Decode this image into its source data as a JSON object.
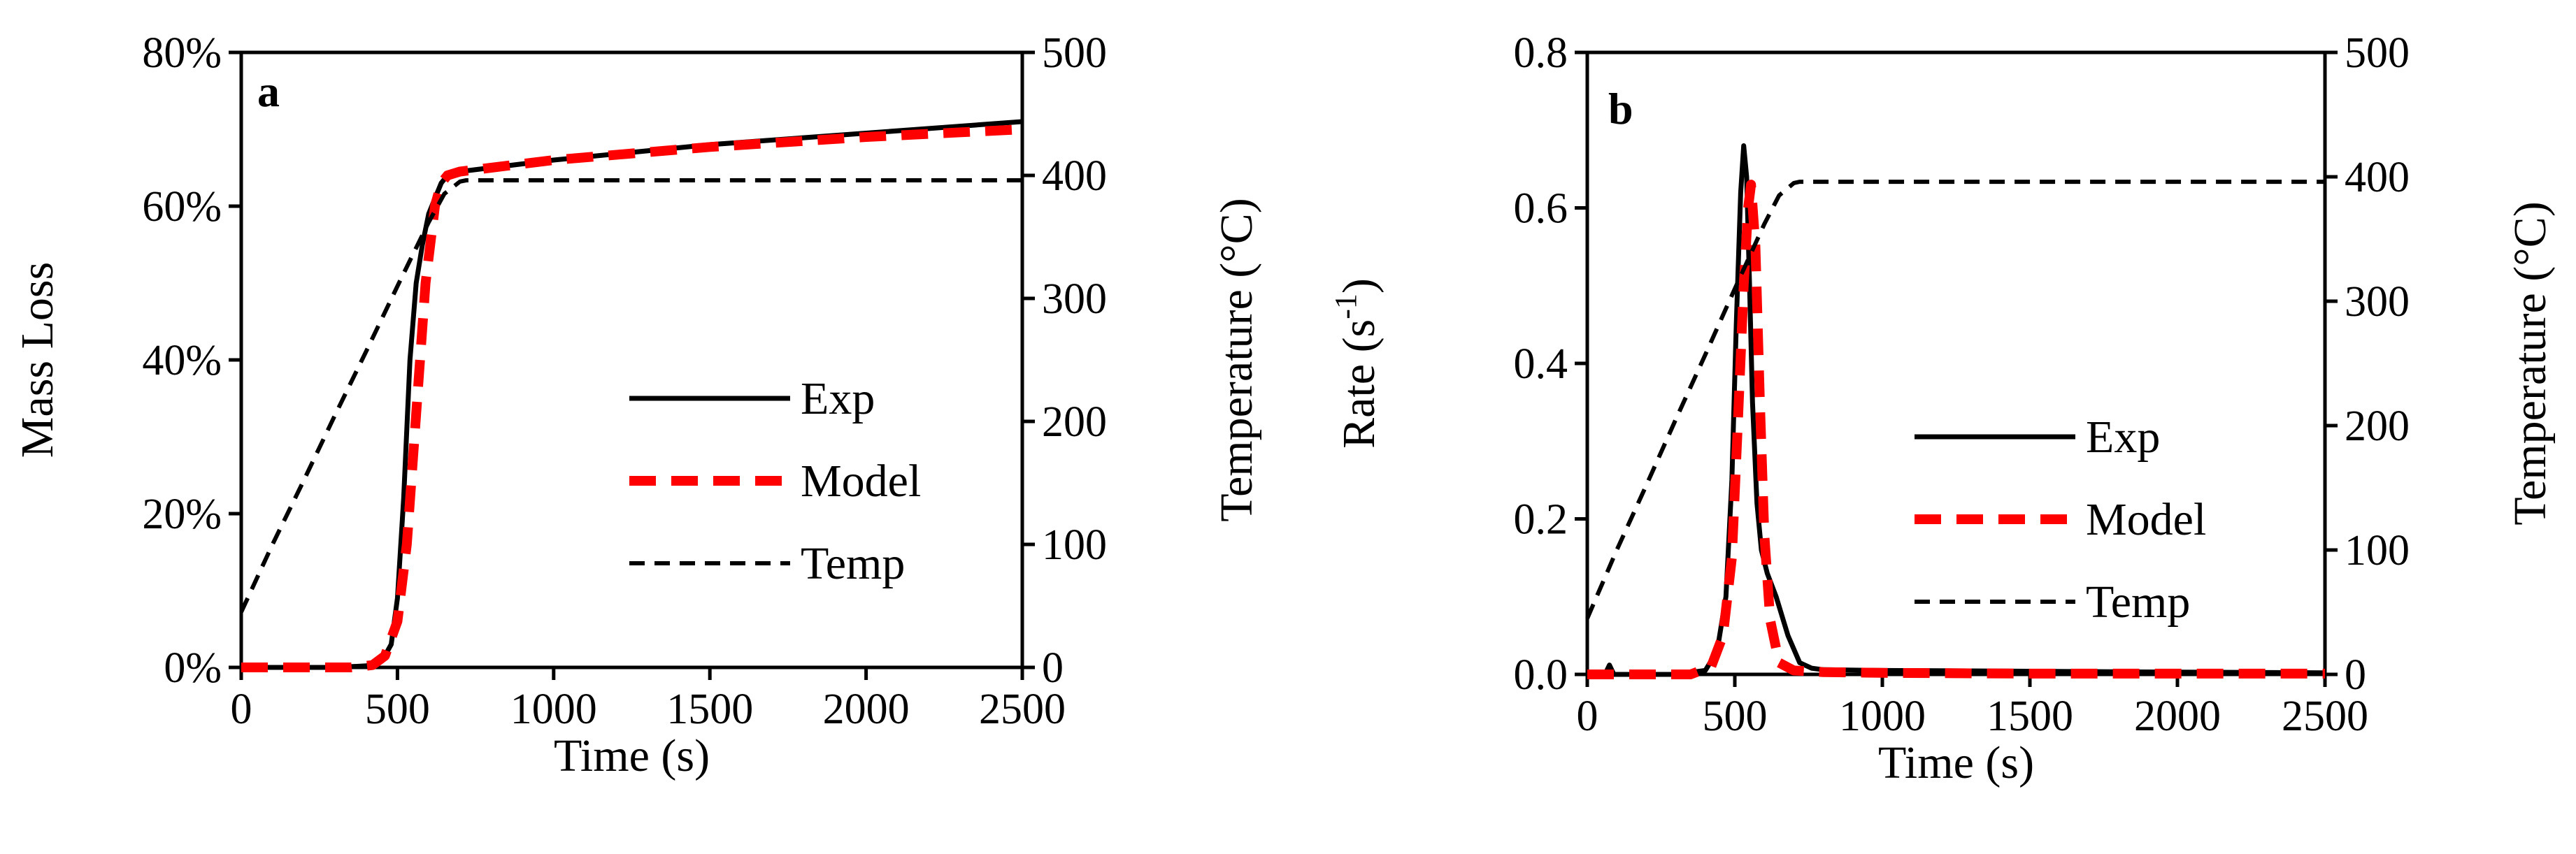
{
  "chart_data": [
    {
      "type": "line",
      "panel_label": "a",
      "xlabel": "Time (s)",
      "ylabel": "Mass Loss",
      "y2label": "Temperature (°C)",
      "xlim": [
        0,
        2500
      ],
      "ylim": [
        0,
        0.8
      ],
      "y2lim": [
        0,
        500
      ],
      "xticks": [
        "0",
        "500",
        "1000",
        "1500",
        "2000",
        "2500"
      ],
      "yticks": [
        "0%",
        "20%",
        "40%",
        "60%",
        "80%"
      ],
      "y2ticks": [
        "0",
        "100",
        "200",
        "300",
        "400",
        "500"
      ],
      "legend_position": "center-right",
      "legend": [
        "Exp",
        "Model",
        "Temp"
      ],
      "series": [
        {
          "name": "Exp",
          "axis": "left",
          "color": "#000000",
          "style": "solid",
          "x": [
            0,
            300,
            400,
            450,
            480,
            500,
            520,
            540,
            560,
            580,
            600,
            620,
            640,
            660,
            700,
            800,
            1000,
            1500,
            2000,
            2500
          ],
          "y": [
            0,
            0,
            0.002,
            0.008,
            0.03,
            0.09,
            0.22,
            0.4,
            0.5,
            0.55,
            0.59,
            0.61,
            0.63,
            0.64,
            0.645,
            0.65,
            0.66,
            0.68,
            0.695,
            0.71
          ]
        },
        {
          "name": "Model",
          "axis": "left",
          "color": "#ff0000",
          "style": "dashed",
          "x": [
            0,
            350,
            420,
            460,
            500,
            530,
            560,
            590,
            620,
            640,
            660,
            700,
            800,
            1000,
            1500,
            2000,
            2500
          ],
          "y": [
            0,
            0,
            0.003,
            0.015,
            0.06,
            0.16,
            0.33,
            0.5,
            0.6,
            0.63,
            0.64,
            0.645,
            0.65,
            0.66,
            0.677,
            0.69,
            0.7
          ]
        },
        {
          "name": "Temp",
          "axis": "right",
          "color": "#000000",
          "style": "dashed",
          "x": [
            0,
            100,
            200,
            300,
            400,
            500,
            600,
            650,
            700,
            720,
            800,
            1500,
            2500
          ],
          "y": [
            45,
            100,
            152,
            205,
            257,
            310,
            362,
            385,
            395,
            396,
            396,
            396,
            396
          ]
        }
      ]
    },
    {
      "type": "line",
      "panel_label": "b",
      "xlabel": "Time (s)",
      "ylabel": "Rate (s",
      "ylabel_superscript": "-1",
      "ylabel_suffix": ")",
      "y2label": "Temperature (°C)",
      "xlim": [
        0,
        2500
      ],
      "ylim": [
        0,
        0.8
      ],
      "y2lim": [
        0,
        500
      ],
      "xticks": [
        "0",
        "500",
        "1000",
        "1500",
        "2000",
        "2500"
      ],
      "yticks": [
        "0.0",
        "0.2",
        "0.4",
        "0.6",
        "0.8"
      ],
      "y2ticks": [
        "0",
        "100",
        "200",
        "300",
        "400",
        "500"
      ],
      "legend_position": "center-right",
      "legend": [
        "Exp",
        "Model",
        "Temp"
      ],
      "series": [
        {
          "name": "Exp",
          "axis": "left",
          "color": "#000000",
          "style": "solid",
          "x": [
            0,
            60,
            75,
            90,
            100,
            150,
            300,
            400,
            440,
            470,
            490,
            505,
            520,
            530,
            540,
            550,
            560,
            575,
            590,
            610,
            640,
            680,
            720,
            760,
            800,
            1000,
            1500,
            2000,
            2500
          ],
          "y": [
            0,
            0,
            0.012,
            0,
            0,
            0,
            0,
            0.005,
            0.03,
            0.1,
            0.25,
            0.45,
            0.62,
            0.68,
            0.64,
            0.5,
            0.35,
            0.22,
            0.16,
            0.13,
            0.1,
            0.05,
            0.015,
            0.008,
            0.006,
            0.005,
            0.004,
            0.003,
            0.002
          ]
        },
        {
          "name": "Model",
          "axis": "left",
          "color": "#ff0000",
          "style": "dashed",
          "x": [
            0,
            350,
            420,
            460,
            490,
            510,
            530,
            545,
            555,
            570,
            585,
            600,
            620,
            650,
            700,
            800,
            1000,
            1500,
            2500
          ],
          "y": [
            0,
            0,
            0.01,
            0.05,
            0.15,
            0.32,
            0.5,
            0.6,
            0.63,
            0.55,
            0.35,
            0.18,
            0.07,
            0.015,
            0.005,
            0.003,
            0.002,
            0.001,
            0.001
          ]
        },
        {
          "name": "Temp",
          "axis": "right",
          "color": "#000000",
          "style": "dashed",
          "x": [
            0,
            100,
            200,
            300,
            400,
            500,
            600,
            650,
            700,
            720,
            800,
            1500,
            2500
          ],
          "y": [
            45,
            100,
            152,
            205,
            257,
            310,
            362,
            385,
            395,
            396,
            396,
            396,
            396
          ]
        }
      ]
    }
  ]
}
